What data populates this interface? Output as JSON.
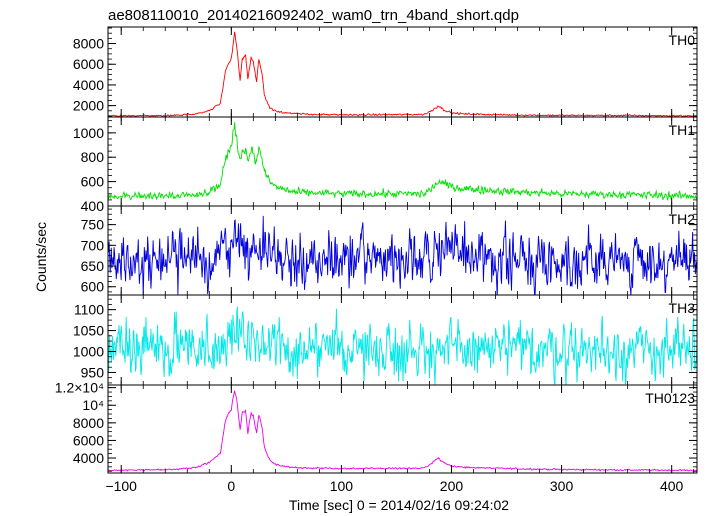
{
  "chart_data": {
    "type": "line",
    "title": "ae808110010_20140216092402_wam0_trn_4band_short.qdp",
    "xlabel": "Time [sec] 0 = 2014/02/16 09:24:02",
    "ylabel": "Counts/sec",
    "xlim": [
      -112,
      423
    ],
    "x_ticks": [
      -100,
      0,
      100,
      200,
      300,
      400
    ],
    "x_tick_labels": [
      "−100",
      "0",
      "100",
      "200",
      "300",
      "400"
    ],
    "panels": [
      {
        "name": "TH0",
        "color": "#ff0000",
        "ylim": [
          900,
          9600
        ],
        "y_ticks": [
          2000,
          4000,
          6000,
          8000
        ],
        "y_tick_labels": [
          "2000",
          "4000",
          "6000",
          "8000"
        ],
        "baseline": 1000,
        "noise": 50,
        "burst_scale": 1.0,
        "x": [
          -112,
          -50,
          -30,
          -20,
          -10,
          -5,
          0,
          3,
          5,
          8,
          10,
          13,
          15,
          18,
          20,
          23,
          25,
          28,
          30,
          35,
          40,
          50,
          60,
          100,
          175,
          182,
          188,
          193,
          200,
          210,
          250,
          300,
          350,
          423
        ],
        "y": [
          1000,
          1050,
          1250,
          1500,
          2200,
          5500,
          6500,
          9000,
          7500,
          4500,
          6500,
          7000,
          4500,
          6800,
          6200,
          4300,
          6600,
          5000,
          3000,
          1800,
          1500,
          1300,
          1200,
          1100,
          1150,
          1500,
          2000,
          1600,
          1300,
          1200,
          1100,
          1050,
          1050,
          1000
        ]
      },
      {
        "name": "TH1",
        "color": "#00e000",
        "ylim": [
          400,
          1130
        ],
        "y_ticks": [
          400,
          600,
          800,
          1000
        ],
        "y_tick_labels": [
          "400",
          "600",
          "800",
          "1000"
        ],
        "baseline": 480,
        "noise": 20,
        "x": [
          -112,
          -50,
          -30,
          -20,
          -10,
          -5,
          0,
          3,
          5,
          8,
          10,
          13,
          15,
          18,
          20,
          23,
          25,
          28,
          30,
          35,
          40,
          50,
          60,
          100,
          175,
          182,
          188,
          193,
          200,
          210,
          250,
          300,
          350,
          423
        ],
        "y": [
          480,
          485,
          500,
          520,
          580,
          800,
          880,
          1060,
          950,
          760,
          860,
          880,
          760,
          870,
          850,
          750,
          880,
          790,
          680,
          600,
          560,
          530,
          510,
          500,
          500,
          540,
          600,
          580,
          560,
          545,
          520,
          500,
          495,
          480
        ]
      },
      {
        "name": "TH2",
        "color": "#0000dd",
        "ylim": [
          580,
          795
        ],
        "y_ticks": [
          600,
          650,
          700,
          750
        ],
        "y_tick_labels": [
          "600",
          "650",
          "700",
          "750"
        ],
        "baseline": 670,
        "noise": 45,
        "x": [
          -112,
          -60,
          -20,
          0,
          5,
          10,
          20,
          30,
          60,
          100,
          185,
          190,
          250,
          423
        ],
        "y": [
          670,
          668,
          672,
          690,
          710,
          700,
          695,
          680,
          665,
          665,
          670,
          690,
          665,
          660
        ]
      },
      {
        "name": "TH3",
        "color": "#00e8e8",
        "ylim": [
          920,
          1135
        ],
        "y_ticks": [
          950,
          1000,
          1050,
          1100
        ],
        "y_tick_labels": [
          "950",
          "1000",
          "1050",
          "1100"
        ],
        "baseline": 1010,
        "noise": 45,
        "x": [
          -112,
          -20,
          0,
          20,
          60,
          200,
          300,
          423
        ],
        "y": [
          1010,
          1012,
          1025,
          1020,
          1010,
          1005,
          1005,
          1000
        ]
      },
      {
        "name": "TH0123",
        "color": "#ee00ee",
        "ylim": [
          2300,
          12300
        ],
        "y_ticks": [
          4000,
          6000,
          8000,
          10000,
          12000
        ],
        "y_tick_labels": [
          "4000",
          "6000",
          "8000",
          "10⁴",
          "1.2×10⁴"
        ],
        "baseline": 2600,
        "noise": 60,
        "x": [
          -112,
          -50,
          -30,
          -20,
          -10,
          -5,
          0,
          3,
          5,
          8,
          10,
          13,
          15,
          18,
          20,
          23,
          25,
          28,
          30,
          35,
          40,
          50,
          60,
          100,
          175,
          182,
          188,
          193,
          200,
          210,
          250,
          300,
          350,
          423
        ],
        "y": [
          2600,
          2700,
          3000,
          3500,
          4500,
          8500,
          9500,
          11800,
          10500,
          7200,
          9200,
          9400,
          7000,
          9200,
          8800,
          6800,
          8900,
          7500,
          5200,
          3800,
          3300,
          3000,
          2900,
          2800,
          2850,
          3400,
          4000,
          3500,
          3100,
          2950,
          2800,
          2700,
          2650,
          2600
        ]
      }
    ],
    "grid": false
  }
}
